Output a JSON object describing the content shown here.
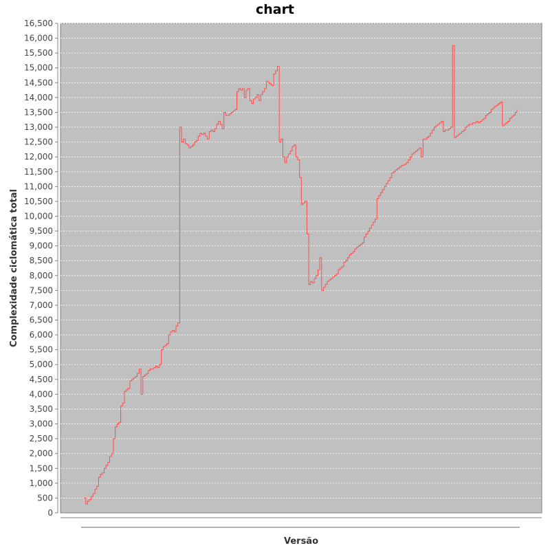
{
  "chart_data": {
    "type": "line",
    "title": "chart",
    "xlabel": "Versão",
    "ylabel": "Complexidade ciclomática total",
    "ylim": [
      0,
      16500
    ],
    "yticks": [
      0,
      500,
      1000,
      1500,
      2000,
      2500,
      3000,
      3500,
      4000,
      4500,
      5000,
      5500,
      6000,
      6500,
      7000,
      7500,
      8000,
      8500,
      9000,
      9500,
      10000,
      10500,
      11000,
      11500,
      12000,
      12500,
      13000,
      13500,
      14000,
      14500,
      15000,
      15500,
      16000,
      16500
    ],
    "ytick_labels": [
      "0",
      "500",
      "1,000",
      "1,500",
      "2,000",
      "2,500",
      "3,000",
      "3,500",
      "4,000",
      "4,500",
      "5,000",
      "5,500",
      "6,000",
      "6,500",
      "7,000",
      "7,500",
      "8,000",
      "8,500",
      "9,000",
      "9,500",
      "10,000",
      "10,500",
      "11,000",
      "11,500",
      "12,000",
      "12,500",
      "13,000",
      "13,500",
      "14,000",
      "14,500",
      "15,000",
      "15,500",
      "16,000",
      "16,500"
    ],
    "grid": true,
    "legend": "none",
    "colors": {
      "plot_background": "#c0c0c0",
      "line": "#ff4d4d",
      "gridline": "#ffffff"
    },
    "series": [
      {
        "values": [
          500,
          300,
          400,
          450,
          550,
          650,
          800,
          900,
          1200,
          1300,
          1350,
          1500,
          1600,
          1700,
          1900,
          2000,
          2500,
          2900,
          3000,
          3050,
          3600,
          3700,
          4100,
          4150,
          4200,
          4450,
          4500,
          4550,
          4600,
          4700,
          4850,
          4000,
          4600,
          4650,
          4700,
          4800,
          4850,
          4850,
          4900,
          4950,
          4900,
          5000,
          5500,
          5600,
          5650,
          5700,
          6000,
          6100,
          6150,
          6100,
          6300,
          6400,
          13000,
          12500,
          12600,
          12450,
          12400,
          12300,
          12350,
          12400,
          12500,
          12550,
          12700,
          12800,
          12750,
          12800,
          12700,
          12600,
          12850,
          12900,
          12850,
          12950,
          13100,
          13200,
          13100,
          12950,
          13500,
          13400,
          13400,
          13450,
          13500,
          13550,
          13600,
          14200,
          14300,
          14250,
          14300,
          14000,
          14250,
          14300,
          13900,
          13800,
          13950,
          14000,
          14100,
          13900,
          14100,
          14200,
          14300,
          14550,
          14500,
          14450,
          14400,
          14800,
          14900,
          15050,
          12500,
          12600,
          12000,
          11800,
          12000,
          12100,
          12200,
          12350,
          12400,
          12000,
          11900,
          11300,
          10400,
          10450,
          10500,
          9400,
          7700,
          7800,
          7750,
          7900,
          8000,
          8200,
          8600,
          7500,
          7600,
          7700,
          7800,
          7850,
          7900,
          7950,
          8000,
          8050,
          8200,
          8250,
          8300,
          8450,
          8500,
          8600,
          8700,
          8750,
          8800,
          8900,
          8950,
          9000,
          9050,
          9100,
          9300,
          9400,
          9500,
          9600,
          9700,
          9800,
          9900,
          10600,
          10700,
          10800,
          10900,
          11000,
          11100,
          11200,
          11300,
          11450,
          11500,
          11550,
          11600,
          11650,
          11700,
          11720,
          11750,
          11800,
          11900,
          12000,
          12100,
          12150,
          12200,
          12250,
          12300,
          12000,
          12600,
          12600,
          12650,
          12700,
          12800,
          12900,
          13000,
          13050,
          13100,
          13150,
          13200,
          12850,
          12900,
          12900,
          12950,
          13000,
          15750,
          12650,
          12700,
          12750,
          12800,
          12850,
          12900,
          13000,
          13050,
          13100,
          13100,
          13150,
          13150,
          13200,
          13150,
          13200,
          13250,
          13300,
          13400,
          13450,
          13500,
          13600,
          13650,
          13700,
          13750,
          13800,
          13850,
          13050,
          13100,
          13150,
          13200,
          13300,
          13350,
          13400,
          13500,
          13600
        ]
      }
    ]
  }
}
